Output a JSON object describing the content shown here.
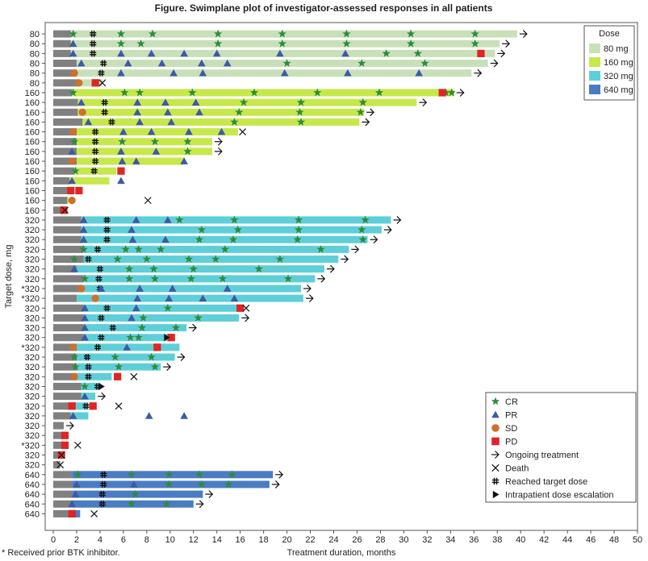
{
  "chart_data": {
    "type": "swimlane",
    "title": "Figure. Swimplane plot of investigator-assessed responses in all patients",
    "xlabel": "Treatment duration, months",
    "ylabel": "Target dose, mg",
    "xlim": [
      0,
      50
    ],
    "xticks": [
      0,
      2,
      4,
      6,
      8,
      10,
      12,
      14,
      16,
      18,
      20,
      22,
      24,
      26,
      28,
      30,
      32,
      34,
      36,
      38,
      40,
      42,
      44,
      46,
      48,
      50
    ],
    "dose_legend": {
      "title": "Dose",
      "entries": [
        {
          "label": "80 mg",
          "color": "#c8e0b8"
        },
        {
          "label": "160 mg",
          "color": "#c6e84a"
        },
        {
          "label": "320 mg",
          "color": "#5ecfd8"
        },
        {
          "label": "640 mg",
          "color": "#4a7cc4"
        }
      ]
    },
    "marker_legend": [
      {
        "key": "CR",
        "label": "CR"
      },
      {
        "key": "PR",
        "label": "PR"
      },
      {
        "key": "SD",
        "label": "SD"
      },
      {
        "key": "PD",
        "label": "PD"
      },
      {
        "key": "ongoing",
        "label": "Ongoing treatment"
      },
      {
        "key": "death",
        "label": "Death"
      },
      {
        "key": "target",
        "label": "Reached target dose"
      },
      {
        "key": "escalation",
        "label": "Intrapatient dose escalation"
      }
    ],
    "lead_in_color": "#808080",
    "footnote": "* Received prior BTK inhibitor.",
    "patients": [
      {
        "dose": "80",
        "grey": 1.5,
        "end": 39.7,
        "ongoing": true,
        "target": 3.4,
        "cr": [
          1.7,
          5.8,
          8.5,
          14.1,
          19.6,
          25.1,
          30.6,
          36.1
        ]
      },
      {
        "dose": "80",
        "grey": 1.5,
        "end": 38.2,
        "ongoing": true,
        "target": 3.4,
        "pr": [
          1.7
        ],
        "cr": [
          5.8,
          7.5,
          14.1,
          19.6,
          25.1,
          30.6,
          36.1
        ]
      },
      {
        "dose": "80",
        "grey": 1.5,
        "end": 37.8,
        "ongoing": true,
        "target": 3.4,
        "pr": [
          1.7,
          5.8,
          8.4,
          11.2,
          14.0,
          19.4,
          25.0
        ],
        "cr": [
          28.5,
          31.2
        ],
        "pd": [
          36.6
        ]
      },
      {
        "dose": "80",
        "grey": 2.0,
        "end": 37.2,
        "ongoing": true,
        "target": 4.3,
        "pr": [
          2.4,
          6.4,
          9.3,
          12.7,
          14.9
        ],
        "cr": [
          20.0,
          26.4,
          31.8
        ]
      },
      {
        "dose": "80",
        "grey": 2.0,
        "end": 35.8,
        "ongoing": true,
        "target": 4.1,
        "sd": [
          1.8
        ],
        "pr": [
          5.8,
          10.3,
          12.8,
          19.8,
          25.2,
          31.3
        ]
      },
      {
        "dose": "80",
        "grey": 2.2,
        "end": 4.2,
        "death": 4.2,
        "sd": [
          2.2
        ],
        "pd": [
          3.6
        ]
      },
      {
        "dose": "160",
        "grey": 1.6,
        "end": 34.3,
        "ongoing": true,
        "cr": [
          1.7,
          6.1,
          7.4,
          11.9,
          17.2,
          22.6,
          27.9,
          33.6,
          34.1
        ],
        "pd": [
          33.3
        ]
      },
      {
        "dose": "160",
        "grey": 2.1,
        "end": 31.1,
        "ongoing": true,
        "target": 4.4,
        "pr": [
          2.4,
          7.2,
          9.6,
          12.2
        ],
        "cr": [
          16.3,
          21.2,
          26.5
        ]
      },
      {
        "dose": "160",
        "grey": 2.1,
        "end": 26.6,
        "ongoing": true,
        "target": 4.4,
        "sd": [
          2.5
        ],
        "pr": [
          7.2,
          9.8,
          12.5
        ],
        "cr": [
          15.9,
          21.1,
          26.3
        ]
      },
      {
        "dose": "160",
        "grey": 2.5,
        "end": 26.2,
        "ongoing": true,
        "target": 5.0,
        "pr": [
          3.0,
          7.4,
          10.1
        ],
        "cr": [
          15.5,
          21.2
        ]
      },
      {
        "dose": "160",
        "grey": 2.0,
        "end": 15.8,
        "death": 16.2,
        "target": 3.6,
        "sd": [
          1.7
        ],
        "pr": [
          6.0,
          8.4,
          11.6,
          14.4
        ]
      },
      {
        "dose": "160",
        "grey": 2.0,
        "end": 13.6,
        "ongoing": true,
        "target": 3.6,
        "cr": [
          1.8,
          5.9,
          8.7,
          11.5
        ]
      },
      {
        "dose": "160",
        "grey": 2.0,
        "end": 13.6,
        "ongoing": true,
        "target": 3.6,
        "pr": [
          1.6,
          5.8,
          8.8
        ],
        "cr": [
          11.5
        ]
      },
      {
        "dose": "160",
        "grey": 2.0,
        "end": 11.2,
        "target": 3.6,
        "sd": [
          1.6
        ],
        "pr": [
          5.9,
          7.1,
          11.2
        ]
      },
      {
        "dose": "160",
        "grey": 1.8,
        "end": 5.4,
        "target": 3.5,
        "cr": [
          1.9
        ],
        "pd": [
          5.8
        ]
      },
      {
        "dose": "160",
        "grey": 1.4,
        "end": 4.8,
        "pr": [
          1.6,
          5.8
        ]
      },
      {
        "dose": "160",
        "grey": 1.2,
        "end": 1.3,
        "pd": [
          1.5,
          2.2
        ]
      },
      {
        "dose": "160",
        "grey": 1.2,
        "end": 1.3,
        "death": 8.1,
        "sd": [
          1.6
        ]
      },
      {
        "dose": "160",
        "grey": 0.9,
        "end": 0.9,
        "death": 1.0,
        "pd": [
          0.9
        ]
      },
      {
        "dose": "320",
        "grey": 2.4,
        "end": 28.9,
        "ongoing": true,
        "target": 4.6,
        "pr": [
          2.6,
          7.1,
          9.8
        ],
        "cr": [
          10.8,
          15.5,
          21.0,
          26.7
        ]
      },
      {
        "dose": "320",
        "grey": 2.4,
        "end": 28.1,
        "ongoing": true,
        "target": 4.6,
        "pr": [
          2.6,
          6.7
        ],
        "cr": [
          12.7,
          15.8,
          21.0,
          26.4
        ]
      },
      {
        "dose": "320",
        "grey": 2.4,
        "end": 26.9,
        "ongoing": true,
        "target": 4.6,
        "pr": [
          2.6,
          6.8,
          9.6
        ],
        "cr": [
          12.5,
          15.4,
          20.9,
          26.5
        ]
      },
      {
        "dose": "320",
        "grey": 2.6,
        "end": 25.3,
        "ongoing": true,
        "target": 3.8,
        "cr": [
          2.6,
          6.2,
          7.3,
          9.2,
          14.7,
          22.9
        ]
      },
      {
        "dose": "320",
        "grey": 2.6,
        "end": 24.4,
        "ongoing": true,
        "target": 3.0,
        "cr": [
          1.8,
          5.5,
          8.0,
          11.6,
          13.9,
          19.4
        ]
      },
      {
        "dose": "320",
        "grey": 2.0,
        "end": 23.2,
        "ongoing": true,
        "target": 4.0,
        "pr": [
          1.8
        ],
        "cr": [
          6.5,
          8.6,
          12.0,
          17.6
        ]
      },
      {
        "dose": "320",
        "grey": 2.6,
        "end": 22.4,
        "ongoing": true,
        "target": 3.9,
        "cr": [
          2.7,
          6.5,
          8.7,
          11.8,
          14.5,
          20.1
        ]
      },
      {
        "dose": "320",
        "grey": 2.6,
        "end": 21.2,
        "ongoing": true,
        "target": 4.0,
        "prior_btk": true,
        "sd": [
          2.4
        ],
        "pr": [
          4.1,
          7.4,
          10.2,
          14.9
        ]
      },
      {
        "dose": "320",
        "grey": 2.0,
        "end": 21.4,
        "ongoing": true,
        "prior_btk": true,
        "sd": [
          3.6
        ],
        "pr": [
          7.2,
          9.9,
          12.8,
          15.5
        ]
      },
      {
        "dose": "320",
        "grey": 2.6,
        "end": 15.9,
        "death": 16.5,
        "target": 4.6,
        "pr": [
          2.7,
          7.1
        ],
        "cr": [
          9.8
        ],
        "pd": [
          16.0
        ]
      },
      {
        "dose": "320",
        "grey": 2.6,
        "end": 15.9,
        "ongoing": true,
        "target": 4.1,
        "pr": [
          2.7,
          6.7
        ],
        "cr": [
          7.7,
          12.4
        ]
      },
      {
        "dose": "320",
        "grey": 2.6,
        "end": 11.4,
        "ongoing": true,
        "target": 5.1,
        "pr": [
          2.7
        ],
        "cr": [
          7.6,
          10.5
        ]
      },
      {
        "dose": "320",
        "grey": 2.6,
        "end": 10.3,
        "target": 4.1,
        "pr": [
          2.7
        ],
        "cr": [
          6.6,
          7.3
        ],
        "pd": [
          10.1
        ],
        "escalation": 9.7
      },
      {
        "dose": "320",
        "grey": 2.0,
        "end": 10.8,
        "target": 3.8,
        "prior_btk": true,
        "sd": [
          1.7
        ],
        "pr": [
          6.3
        ],
        "pd": [
          8.9
        ]
      },
      {
        "dose": "320",
        "grey": 2.0,
        "end": 10.4,
        "ongoing": true,
        "target": 2.9,
        "cr": [
          1.8,
          5.3,
          8.4
        ]
      },
      {
        "dose": "320",
        "grey": 2.0,
        "end": 9.2,
        "ongoing": true,
        "target": 3.0,
        "cr": [
          1.9,
          5.6,
          8.7
        ]
      },
      {
        "dose": "320",
        "grey": 2.0,
        "end": 5.0,
        "death": 6.9,
        "target": 3.0,
        "sd": [
          1.8
        ],
        "pd": [
          5.5
        ]
      },
      {
        "dose": "320",
        "grey": 2.4,
        "end": 4.0,
        "target": 3.8,
        "cr": [
          2.7
        ],
        "escalation": 4.1
      },
      {
        "dose": "320",
        "grey": 2.4,
        "end": 3.6,
        "ongoing": true,
        "pr": [
          2.7
        ]
      },
      {
        "dose": "320",
        "grey": 1.5,
        "end": 3.0,
        "death": 5.6,
        "target": 2.8,
        "pd": [
          1.6,
          3.4
        ]
      },
      {
        "dose": "320",
        "grey": 1.5,
        "end": 3.0,
        "pr": [
          1.7,
          8.2,
          11.2
        ]
      },
      {
        "dose": "320",
        "grey": 0.9,
        "end": 0.9,
        "ongoing": true
      },
      {
        "dose": "320",
        "grey": 0.9,
        "end": 0.9,
        "pd": [
          1.0
        ]
      },
      {
        "dose": "320",
        "grey": 0.9,
        "end": 0.9,
        "death": 2.1,
        "prior_btk": true,
        "pd": [
          1.0
        ]
      },
      {
        "dose": "320",
        "grey": 0.9,
        "end": 0.9,
        "pd": [
          0.7
        ],
        "death": 0.7
      },
      {
        "dose": "320",
        "grey": 0.6,
        "end": 0.6,
        "death": 0.6
      },
      {
        "dose": "640",
        "grey": 1.6,
        "end": 18.8,
        "ongoing": true,
        "target": 4.3,
        "cr": [
          2.1,
          6.7,
          9.9,
          12.5,
          15.3
        ]
      },
      {
        "dose": "640",
        "grey": 1.6,
        "end": 18.5,
        "ongoing": true,
        "target": 4.3,
        "pr": [
          2.0,
          6.9
        ],
        "cr": [
          9.9,
          12.7,
          15.0
        ]
      },
      {
        "dose": "640",
        "grey": 1.6,
        "end": 12.8,
        "ongoing": true,
        "target": 4.2,
        "pr": [
          1.9
        ],
        "cr": [
          7.0
        ]
      },
      {
        "dose": "640",
        "grey": 1.6,
        "end": 12.0,
        "ongoing": true,
        "target": 4.2,
        "pr": [
          1.6
        ],
        "cr": [
          6.7,
          9.7
        ]
      },
      {
        "dose": "640",
        "grey": 1.6,
        "end": 2.3,
        "death": 3.5,
        "pd": [
          1.6
        ]
      }
    ]
  }
}
